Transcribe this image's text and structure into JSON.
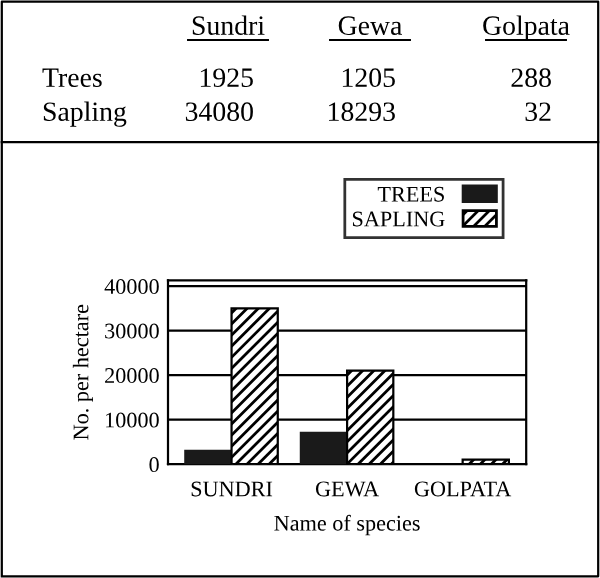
{
  "chart_data": [
    {
      "type": "other",
      "categories": [
        "Sundri",
        "Gewa",
        "Golpata"
      ],
      "series": [
        {
          "name": "Trees",
          "values": [
            1925,
            1205,
            288
          ]
        },
        {
          "name": "Sapling",
          "values": [
            34080,
            18293,
            32
          ]
        }
      ],
      "data_labels": true
    },
    {
      "type": "bar",
      "categories": [
        "SUNDRI",
        "GEWA",
        "GOLPATA"
      ],
      "series": [
        {
          "name": "TREES",
          "color": "#1a1a1a",
          "values": [
            3000,
            7000,
            null
          ]
        },
        {
          "name": "SAPLING",
          "color": "#000000",
          "values": [
            35000,
            21000,
            1000
          ]
        }
      ],
      "xlabel": "Name of species",
      "ylabel": "No. per hectare",
      "ylim": [
        0,
        41300
      ],
      "yticks": [
        0,
        10000,
        20000,
        30000,
        40000
      ],
      "legend": "top right",
      "grid": "y"
    }
  ]
}
